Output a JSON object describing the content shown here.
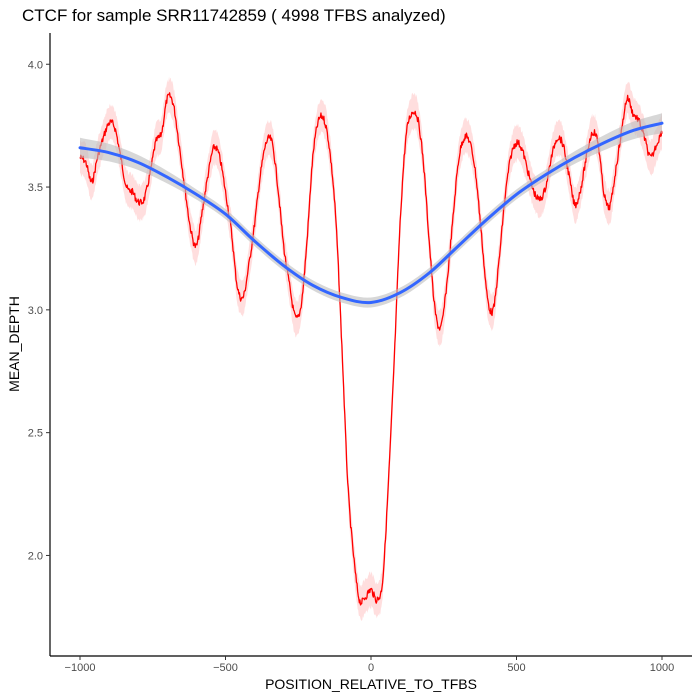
{
  "chart_data": {
    "type": "line",
    "title": "CTCF for sample SRR11742859 ( 4998 TFBS analyzed)",
    "xlabel": "POSITION_RELATIVE_TO_TFBS",
    "ylabel": "MEAN_DEPTH",
    "xlim": [
      -1000,
      1000
    ],
    "ylim": [
      1.6,
      4.13
    ],
    "x_ticks": [
      -1000,
      -500,
      0,
      500,
      1000
    ],
    "x_tick_labels": [
      "−1000",
      "−500",
      "0",
      "500",
      "1000"
    ],
    "y_ticks": [
      2.0,
      2.5,
      3.0,
      3.5,
      4.0
    ],
    "y_tick_labels": [
      "2.0",
      "2.5",
      "3.0",
      "3.5",
      "4.0"
    ],
    "grid": false,
    "colors": {
      "raw": "#ff0000",
      "raw_ribbon": "#ffd6d6",
      "smooth": "#3366ff",
      "smooth_ribbon": "#bdbdbd"
    },
    "series": [
      {
        "style": "raw",
        "x": [
          -1000,
          -980,
          -960,
          -940,
          -920,
          -900,
          -880,
          -860,
          -840,
          -820,
          -800,
          -780,
          -760,
          -740,
          -720,
          -700,
          -680,
          -660,
          -640,
          -620,
          -600,
          -580,
          -560,
          -540,
          -520,
          -500,
          -480,
          -460,
          -440,
          -420,
          -400,
          -380,
          -360,
          -340,
          -320,
          -300,
          -280,
          -260,
          -240,
          -220,
          -200,
          -180,
          -160,
          -140,
          -120,
          -100,
          -80,
          -60,
          -40,
          -20,
          0,
          20,
          40,
          60,
          80,
          100,
          120,
          140,
          160,
          180,
          200,
          220,
          240,
          260,
          280,
          300,
          320,
          340,
          360,
          380,
          400,
          420,
          440,
          460,
          480,
          500,
          520,
          540,
          560,
          580,
          600,
          620,
          640,
          660,
          680,
          700,
          720,
          740,
          760,
          780,
          800,
          820,
          840,
          860,
          880,
          900,
          920,
          940,
          960,
          980,
          1000
        ],
        "values": [
          3.62,
          3.6,
          3.52,
          3.62,
          3.7,
          3.76,
          3.74,
          3.62,
          3.5,
          3.48,
          3.44,
          3.45,
          3.55,
          3.68,
          3.72,
          3.86,
          3.84,
          3.68,
          3.5,
          3.33,
          3.26,
          3.4,
          3.55,
          3.66,
          3.62,
          3.48,
          3.32,
          3.1,
          3.05,
          3.18,
          3.35,
          3.55,
          3.68,
          3.68,
          3.5,
          3.26,
          3.1,
          2.97,
          3.02,
          3.28,
          3.62,
          3.77,
          3.77,
          3.63,
          3.35,
          2.85,
          2.3,
          2.0,
          1.82,
          1.83,
          1.86,
          1.82,
          1.9,
          2.3,
          2.8,
          3.35,
          3.7,
          3.8,
          3.78,
          3.6,
          3.28,
          3.0,
          2.93,
          3.1,
          3.35,
          3.6,
          3.7,
          3.68,
          3.55,
          3.3,
          3.05,
          3.0,
          3.2,
          3.45,
          3.62,
          3.68,
          3.65,
          3.56,
          3.48,
          3.45,
          3.5,
          3.62,
          3.7,
          3.67,
          3.55,
          3.43,
          3.49,
          3.62,
          3.72,
          3.68,
          3.48,
          3.42,
          3.56,
          3.72,
          3.86,
          3.8,
          3.77,
          3.7,
          3.62,
          3.67,
          3.73
        ]
      },
      {
        "style": "smooth",
        "x": [
          -1000,
          -900,
          -800,
          -700,
          -600,
          -500,
          -400,
          -300,
          -200,
          -100,
          0,
          100,
          200,
          300,
          400,
          500,
          600,
          700,
          800,
          900,
          1000
        ],
        "values": [
          3.66,
          3.64,
          3.6,
          3.54,
          3.47,
          3.39,
          3.28,
          3.18,
          3.1,
          3.05,
          3.03,
          3.07,
          3.15,
          3.26,
          3.37,
          3.47,
          3.55,
          3.62,
          3.68,
          3.73,
          3.76
        ]
      }
    ]
  }
}
